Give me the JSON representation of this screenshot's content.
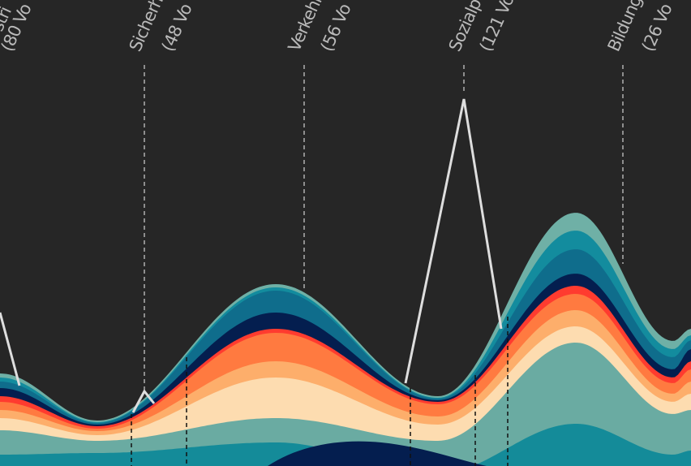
{
  "chart_data": {
    "type": "streamgraph",
    "annotations": [
      {
        "name": "stri",
        "count": "(80 Vo"
      },
      {
        "name": "Sicherh",
        "count": "(48 Vo"
      },
      {
        "name": "Verkehr",
        "count": "(56 Vo"
      },
      {
        "name": "Sozialp",
        "count": "(121 Vo"
      },
      {
        "name": "Bildung",
        "count": "(26 Vo"
      }
    ]
  }
}
